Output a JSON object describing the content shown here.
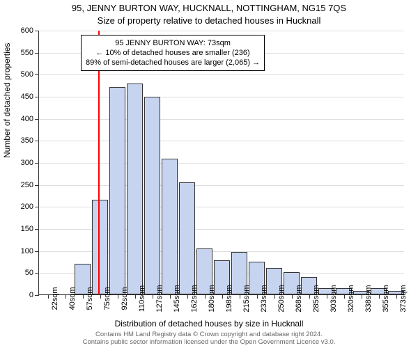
{
  "chart": {
    "type": "histogram",
    "title_main": "95, JENNY BURTON WAY, HUCKNALL, NOTTINGHAM, NG15 7QS",
    "title_sub": "Size of property relative to detached houses in Hucknall",
    "y_axis_label": "Number of detached properties",
    "x_axis_label": "Distribution of detached houses by size in Hucknall",
    "background_color": "#ffffff",
    "grid_color": "#dddddd",
    "axis_color": "#333333",
    "bar_fill_color": "#c7d4ef",
    "bar_border_color": "#333333",
    "reference_line_color": "#ff0000",
    "reference_line_x": 73,
    "ylim": [
      0,
      600
    ],
    "ytick_step": 50,
    "x_categories": [
      "22sqm",
      "40sqm",
      "57sqm",
      "75sqm",
      "92sqm",
      "110sqm",
      "127sqm",
      "145sqm",
      "162sqm",
      "180sqm",
      "198sqm",
      "215sqm",
      "233sqm",
      "250sqm",
      "268sqm",
      "285sqm",
      "303sqm",
      "320sqm",
      "338sqm",
      "355sqm",
      "373sqm"
    ],
    "x_values": [
      22,
      40,
      57,
      75,
      92,
      110,
      127,
      145,
      162,
      180,
      198,
      215,
      233,
      250,
      268,
      285,
      303,
      320,
      338,
      355,
      373
    ],
    "bar_values": [
      0,
      0,
      70,
      215,
      470,
      478,
      448,
      308,
      255,
      105,
      78,
      96,
      75,
      60,
      50,
      40,
      15,
      15,
      8,
      15,
      8
    ],
    "bar_width_ratio": 0.92,
    "annotation": {
      "line1": "95 JENNY BURTON WAY: 73sqm",
      "line2": "← 10% of detached houses are smaller (236)",
      "line3": "89% of semi-detached houses are larger (2,065) →"
    }
  },
  "footer": {
    "line1": "Contains HM Land Registry data © Crown copyright and database right 2024.",
    "line2": "Contains public sector information licensed under the Open Government Licence v3.0."
  }
}
